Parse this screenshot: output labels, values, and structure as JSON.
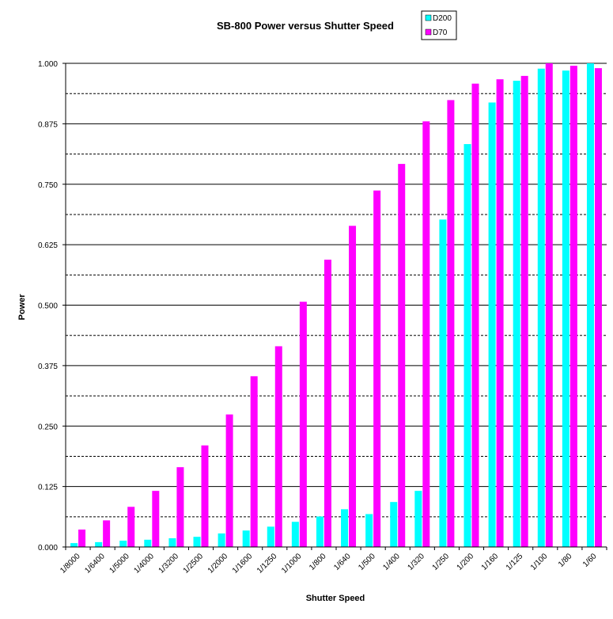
{
  "chart_data": {
    "type": "bar",
    "title": "SB-800 Power versus Shutter Speed",
    "xlabel": "Shutter Speed",
    "ylabel": "Power",
    "ylim": [
      0,
      1
    ],
    "y_ticks": [
      "0.000",
      "0.125",
      "0.250",
      "0.375",
      "0.500",
      "0.625",
      "0.750",
      "0.875",
      "1.000"
    ],
    "y_tick_values": [
      0,
      0.125,
      0.25,
      0.375,
      0.5,
      0.625,
      0.75,
      0.875,
      1.0
    ],
    "minor_gridlines": "dashed",
    "major_gridlines": "solid",
    "legend_position": "top-right",
    "categories": [
      "1/8000",
      "1/6400",
      "1/5000",
      "1/4000",
      "1/3200",
      "1/2500",
      "1/2000",
      "1/1600",
      "1/1250",
      "1/1000",
      "1/800",
      "1/640",
      "1/500",
      "1/400",
      "1/320",
      "1/250",
      "1/200",
      "1/160",
      "1/125",
      "1/100",
      "1/80",
      "1/60"
    ],
    "series": [
      {
        "name": "D200",
        "color": "#00FFFF",
        "values": [
          0.008,
          0.01,
          0.013,
          0.015,
          0.018,
          0.021,
          0.028,
          0.034,
          0.042,
          0.052,
          0.063,
          0.078,
          0.068,
          0.093,
          0.116,
          0.677,
          0.833,
          0.919,
          0.964,
          0.989,
          0.985,
          1.0
        ]
      },
      {
        "name": "D70",
        "color": "#FF00FF",
        "values": [
          0.036,
          0.055,
          0.083,
          0.116,
          0.165,
          0.21,
          0.274,
          0.353,
          0.415,
          0.507,
          0.594,
          0.664,
          0.737,
          0.792,
          0.88,
          0.924,
          0.958,
          0.967,
          0.974,
          1.0,
          0.995,
          0.99
        ]
      }
    ]
  }
}
